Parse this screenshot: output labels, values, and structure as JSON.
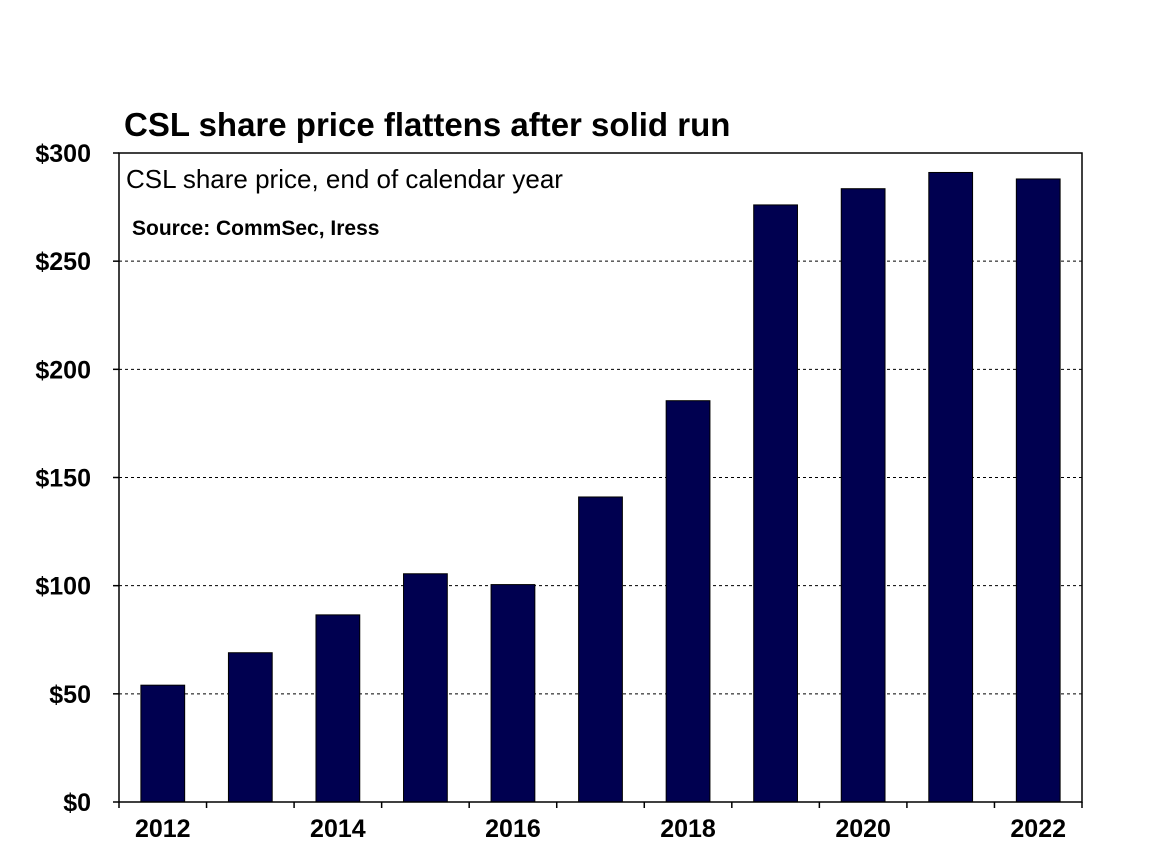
{
  "chart_data": {
    "type": "bar",
    "title": "CSL share price flattens after solid run",
    "subtitle": "CSL share price, end of calendar year",
    "source": "Source: CommSec, Iress",
    "categories": [
      "2012",
      "2013",
      "2014",
      "2015",
      "2016",
      "2017",
      "2018",
      "2019",
      "2020",
      "2021",
      "2022"
    ],
    "values": [
      54,
      69,
      86.5,
      105.5,
      100.5,
      141,
      185.5,
      276,
      283.5,
      291,
      288
    ],
    "x_tick_labels": [
      "2012",
      "",
      "2014",
      "",
      "2016",
      "",
      "2018",
      "",
      "2020",
      "",
      "2022"
    ],
    "ylim": [
      0,
      300
    ],
    "y_ticks": [
      0,
      50,
      100,
      150,
      200,
      250,
      300
    ],
    "y_tick_labels": [
      "$0",
      "$50",
      "$100",
      "$150",
      "$200",
      "$250",
      "$300"
    ],
    "grid": true,
    "bar_color": "#000050"
  }
}
